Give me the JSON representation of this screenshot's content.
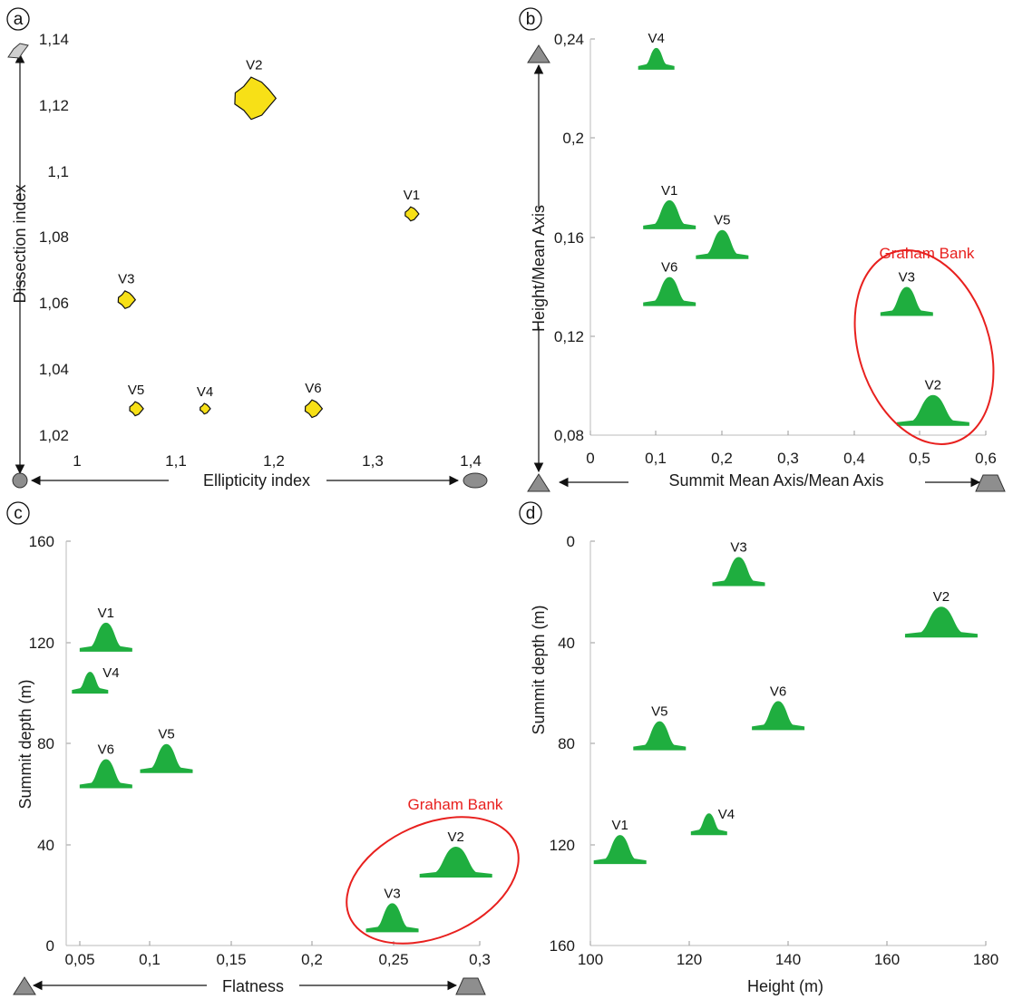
{
  "colors": {
    "yellow": "#f7e017",
    "green": "#1fae3f",
    "gray": "#8e8e8e",
    "red": "#e8201e"
  },
  "chart_data": [
    {
      "panel": "a",
      "type": "scatter",
      "xlabel": "Ellipticity index",
      "ylabel": "Dissection index",
      "xlim": [
        1,
        1.4
      ],
      "ylim": [
        1.02,
        1.14
      ],
      "xticks": [
        "1",
        "1,1",
        "1,2",
        "1,3",
        "1,4"
      ],
      "yticks": [
        "1,02",
        "1,04",
        "1,06",
        "1,08",
        "1,1",
        "1,12",
        "1,14"
      ],
      "points": [
        {
          "name": "V1",
          "x": 1.34,
          "y": 1.087
        },
        {
          "name": "V2",
          "x": 1.18,
          "y": 1.122
        },
        {
          "name": "V3",
          "x": 1.05,
          "y": 1.061
        },
        {
          "name": "V4",
          "x": 1.13,
          "y": 1.028
        },
        {
          "name": "V5",
          "x": 1.06,
          "y": 1.028
        },
        {
          "name": "V6",
          "x": 1.24,
          "y": 1.028
        }
      ]
    },
    {
      "panel": "b",
      "type": "scatter",
      "xlabel": "Summit Mean Axis/Mean Axis",
      "ylabel": "Height/Mean Axis",
      "xlim": [
        0,
        0.6
      ],
      "ylim": [
        0.08,
        0.24
      ],
      "xticks": [
        "0",
        "0,1",
        "0,2",
        "0,3",
        "0,4",
        "0,5",
        "0,6"
      ],
      "yticks": [
        "0,08",
        "0,12",
        "0,16",
        "0,2",
        "0,24"
      ],
      "annotation": "Graham Bank",
      "points": [
        {
          "name": "V4",
          "x": 0.1,
          "y": 0.232
        },
        {
          "name": "V1",
          "x": 0.12,
          "y": 0.169
        },
        {
          "name": "V5",
          "x": 0.2,
          "y": 0.157
        },
        {
          "name": "V6",
          "x": 0.12,
          "y": 0.138
        },
        {
          "name": "V3",
          "x": 0.48,
          "y": 0.134
        },
        {
          "name": "V2",
          "x": 0.52,
          "y": 0.09
        }
      ]
    },
    {
      "panel": "c",
      "type": "scatter",
      "xlabel": "Flatness",
      "ylabel": "Summit depth (m)",
      "xlim": [
        0.04,
        0.3
      ],
      "ylim": [
        0,
        160
      ],
      "xticks": [
        "0,05",
        "0,1",
        "0,15",
        "0,2",
        "0,25",
        "0,3"
      ],
      "yticks": [
        "0",
        "40",
        "80",
        "120",
        "160"
      ],
      "annotation": "Graham Bank",
      "points": [
        {
          "name": "V1",
          "x": 0.065,
          "y": 122
        },
        {
          "name": "V4",
          "x": 0.055,
          "y": 104
        },
        {
          "name": "V6",
          "x": 0.065,
          "y": 68
        },
        {
          "name": "V5",
          "x": 0.103,
          "y": 74
        },
        {
          "name": "V2",
          "x": 0.285,
          "y": 33
        },
        {
          "name": "V3",
          "x": 0.245,
          "y": 11
        }
      ]
    },
    {
      "panel": "d",
      "type": "scatter",
      "xlabel": "Height (m)",
      "ylabel": "Summit depth (m)",
      "xlim": [
        100,
        180
      ],
      "ylim": [
        0,
        160
      ],
      "y_inverted": true,
      "xticks": [
        "100",
        "120",
        "140",
        "160",
        "180"
      ],
      "yticks": [
        "0",
        "40",
        "80",
        "120",
        "160"
      ],
      "points": [
        {
          "name": "V3",
          "x": 130,
          "y": 12
        },
        {
          "name": "V2",
          "x": 171,
          "y": 32
        },
        {
          "name": "V6",
          "x": 138,
          "y": 69
        },
        {
          "name": "V5",
          "x": 114,
          "y": 77
        },
        {
          "name": "V4",
          "x": 124,
          "y": 112
        },
        {
          "name": "V1",
          "x": 106,
          "y": 122
        }
      ]
    }
  ]
}
